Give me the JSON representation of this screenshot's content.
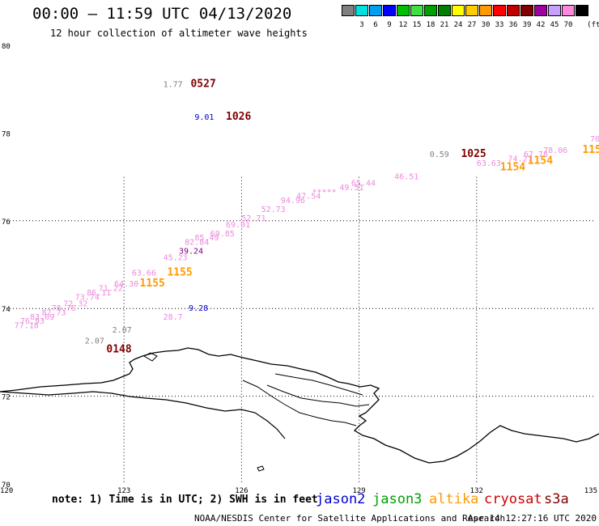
{
  "header": {
    "title": "00:00 – 11:59 UTC 04/13/2020",
    "subtitle": "12 hour collection of altimeter wave heights"
  },
  "legend": {
    "unit": "(ft)",
    "items": [
      {
        "label": "",
        "color": "#808080"
      },
      {
        "label": "3",
        "color": "#00e0e0"
      },
      {
        "label": "6",
        "color": "#00a0f0"
      },
      {
        "label": "9",
        "color": "#0000ff"
      },
      {
        "label": "12",
        "color": "#00c000"
      },
      {
        "label": "15",
        "color": "#40e040"
      },
      {
        "label": "18",
        "color": "#00a000"
      },
      {
        "label": "21",
        "color": "#008000"
      },
      {
        "label": "24",
        "color": "#ffff00"
      },
      {
        "label": "27",
        "color": "#ffcc00"
      },
      {
        "label": "30",
        "color": "#ff9900"
      },
      {
        "label": "33",
        "color": "#ff0000"
      },
      {
        "label": "36",
        "color": "#c00000"
      },
      {
        "label": "39",
        "color": "#800000"
      },
      {
        "label": "42",
        "color": "#a000a0"
      },
      {
        "label": "45",
        "color": "#c8a0ff"
      },
      {
        "label": "70",
        "color": "#ff88dd"
      },
      {
        "label": "",
        "color": "#000000"
      }
    ]
  },
  "axes": {
    "lat_labels": [
      {
        "value": 80,
        "text": "80"
      },
      {
        "value": 78,
        "text": "78"
      },
      {
        "value": 76,
        "text": "76"
      },
      {
        "value": 74,
        "text": "74"
      },
      {
        "value": 72,
        "text": "72"
      },
      {
        "value": 70,
        "text": "70"
      }
    ],
    "lon_labels": [
      {
        "value": 120,
        "text": "120"
      },
      {
        "value": 123,
        "text": "123"
      },
      {
        "value": 126,
        "text": "126"
      },
      {
        "value": 129,
        "text": "129"
      },
      {
        "value": 132,
        "text": "132"
      },
      {
        "value": 135,
        "text": "135"
      }
    ],
    "lon_range": [
      120,
      135
    ],
    "lat_range": [
      70,
      80
    ]
  },
  "colors": {
    "jason2": "#0000cc",
    "jason3": "#00a000",
    "altika": "#ff9900",
    "cryosat": "#cc0000",
    "s3a": "#800000",
    "pink": "#ee88dd",
    "gray": "#808080",
    "purple": "#800080"
  },
  "observations": [
    {
      "text": "1.77",
      "lon": 124.0,
      "lat": 79.05,
      "color": "gray"
    },
    {
      "text": "0527",
      "lon": 124.7,
      "lat": 79.05,
      "color": "s3a",
      "bold": true
    },
    {
      "text": "9.01",
      "lon": 124.8,
      "lat": 78.3,
      "color": "jason2"
    },
    {
      "text": "1026",
      "lon": 125.6,
      "lat": 78.3,
      "color": "s3a",
      "bold": true
    },
    {
      "text": "0.59",
      "lon": 130.8,
      "lat": 77.45,
      "color": "gray"
    },
    {
      "text": "1025",
      "lon": 131.6,
      "lat": 77.45,
      "color": "s3a",
      "bold": true
    },
    {
      "text": "70",
      "lon": 134.9,
      "lat": 77.8,
      "color": "pink"
    },
    {
      "text": "115",
      "lon": 134.7,
      "lat": 77.55,
      "color": "altika",
      "bold": true
    },
    {
      "text": "78.06",
      "lon": 133.7,
      "lat": 77.55,
      "color": "pink"
    },
    {
      "text": "67.78",
      "lon": 133.2,
      "lat": 77.45,
      "color": "pink"
    },
    {
      "text": "1154",
      "lon": 133.3,
      "lat": 77.3,
      "color": "altika",
      "bold": true
    },
    {
      "text": "74.27",
      "lon": 132.8,
      "lat": 77.35,
      "color": "pink"
    },
    {
      "text": "1154",
      "lon": 132.6,
      "lat": 77.15,
      "color": "altika",
      "bold": true
    },
    {
      "text": "63.63",
      "lon": 132.0,
      "lat": 77.25,
      "color": "pink"
    },
    {
      "text": "46.51",
      "lon": 129.9,
      "lat": 76.95,
      "color": "pink"
    },
    {
      "text": "65.44",
      "lon": 128.8,
      "lat": 76.8,
      "color": "pink"
    },
    {
      "text": "49.51",
      "lon": 128.5,
      "lat": 76.7,
      "color": "pink"
    },
    {
      "text": "*****",
      "lon": 127.8,
      "lat": 76.6,
      "color": "pink"
    },
    {
      "text": "47.54",
      "lon": 127.4,
      "lat": 76.5,
      "color": "pink"
    },
    {
      "text": "94.96",
      "lon": 127.0,
      "lat": 76.4,
      "color": "pink"
    },
    {
      "text": "52.73",
      "lon": 126.5,
      "lat": 76.2,
      "color": "pink"
    },
    {
      "text": "52.71",
      "lon": 126.0,
      "lat": 76.0,
      "color": "pink"
    },
    {
      "text": "69.01",
      "lon": 125.6,
      "lat": 75.85,
      "color": "pink"
    },
    {
      "text": "69.85",
      "lon": 125.2,
      "lat": 75.65,
      "color": "pink"
    },
    {
      "text": "85.49",
      "lon": 124.8,
      "lat": 75.55,
      "color": "pink"
    },
    {
      "text": "82.84",
      "lon": 124.55,
      "lat": 75.45,
      "color": "pink"
    },
    {
      "text": "39.24",
      "lon": 124.4,
      "lat": 75.25,
      "color": "purple"
    },
    {
      "text": "45.23",
      "lon": 124.0,
      "lat": 75.1,
      "color": "pink"
    },
    {
      "text": "63.66",
      "lon": 123.2,
      "lat": 74.75,
      "color": "pink"
    },
    {
      "text": "1155",
      "lon": 124.1,
      "lat": 74.75,
      "color": "altika",
      "bold": true
    },
    {
      "text": "1155",
      "lon": 123.4,
      "lat": 74.5,
      "color": "altika",
      "bold": true
    },
    {
      "text": "64.30",
      "lon": 122.75,
      "lat": 74.5,
      "color": "pink"
    },
    {
      "text": "71.22",
      "lon": 122.35,
      "lat": 74.4,
      "color": "pink"
    },
    {
      "text": "86.11",
      "lon": 122.05,
      "lat": 74.3,
      "color": "pink"
    },
    {
      "text": "73.74",
      "lon": 121.75,
      "lat": 74.2,
      "color": "pink"
    },
    {
      "text": "72.32",
      "lon": 121.45,
      "lat": 74.05,
      "color": "pink"
    },
    {
      "text": "78.76",
      "lon": 121.15,
      "lat": 73.95,
      "color": "pink"
    },
    {
      "text": "87.73",
      "lon": 120.9,
      "lat": 73.85,
      "color": "pink"
    },
    {
      "text": "83.09",
      "lon": 120.6,
      "lat": 73.75,
      "color": "pink"
    },
    {
      "text": "76.93",
      "lon": 120.35,
      "lat": 73.65,
      "color": "pink"
    },
    {
      "text": "77.18",
      "lon": 120.2,
      "lat": 73.55,
      "color": "pink"
    },
    {
      "text": "9.28",
      "lon": 124.65,
      "lat": 73.95,
      "color": "jason2"
    },
    {
      "text": "28.7",
      "lon": 124.0,
      "lat": 73.75,
      "color": "pink"
    },
    {
      "text": "2.07",
      "lon": 122.7,
      "lat": 73.45,
      "color": "gray"
    },
    {
      "text": "2.07",
      "lon": 122.0,
      "lat": 73.2,
      "color": "gray"
    },
    {
      "text": "0148",
      "lon": 122.55,
      "lat": 73.0,
      "color": "s3a",
      "bold": true
    }
  ],
  "note": {
    "text": "note: 1) Time is in UTC; 2) SWH is in feet"
  },
  "satellites": [
    {
      "label": "jason2",
      "color": "jason2"
    },
    {
      "label": "jason3",
      "color": "jason3"
    },
    {
      "label": "altika",
      "color": "altika"
    },
    {
      "label": "cryosat",
      "color": "cryosat"
    },
    {
      "label": "s3a",
      "color": "s3a"
    }
  ],
  "footer": {
    "agency": "NOAA/NESDIS Center for Satellite Applications and Research",
    "timestamp": "Apr 14 12:27:16 UTC 2020"
  }
}
